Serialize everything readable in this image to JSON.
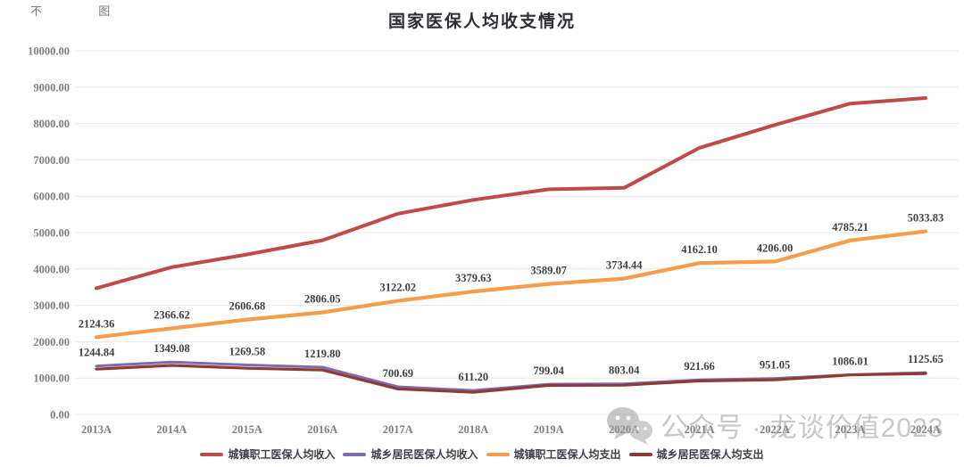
{
  "corner_marks": "不 图",
  "watermark": {
    "icon": "wechat-icon",
    "text": "公众号 · 龙谈价值2023"
  },
  "chart_data": {
    "type": "line",
    "title": "国家医保人均收支情况",
    "categories": [
      "2013A",
      "2014A",
      "2015A",
      "2016A",
      "2017A",
      "2018A",
      "2019A",
      "2020A",
      "2021A",
      "2022A",
      "2023A",
      "2024A"
    ],
    "series": [
      {
        "name": "城镇职工医保人均收入",
        "color": "#BE4B48",
        "labels_shown": false,
        "values_estimated": true,
        "values": [
          3470,
          4050,
          4400,
          4790,
          5520,
          5900,
          6190,
          6230,
          7330,
          7960,
          8550,
          8700
        ]
      },
      {
        "name": "城乡居民医保人均收入",
        "color": "#7D6BAF",
        "labels_shown": false,
        "values_estimated": true,
        "values": [
          1330,
          1440,
          1360,
          1300,
          760,
          660,
          830,
          840,
          950,
          990,
          1090,
          1150
        ]
      },
      {
        "name": "城镇职工医保人均支出",
        "color": "#F59D4D",
        "labels_shown": true,
        "values": [
          2124.36,
          2366.62,
          2606.68,
          2806.05,
          3122.02,
          3379.63,
          3589.07,
          3734.44,
          4162.1,
          4206.0,
          4785.21,
          5033.83
        ]
      },
      {
        "name": "城乡居民医保人均支出",
        "color": "#8E3B36",
        "labels_shown": true,
        "label_clear_series": [
          1,
          3
        ],
        "values": [
          1244.84,
          1349.08,
          1269.58,
          1219.8,
          700.69,
          611.2,
          799.04,
          803.04,
          921.66,
          951.05,
          1086.01,
          1125.65
        ]
      }
    ],
    "ylim": [
      0,
      10000
    ],
    "ytick_step": 1000,
    "ytick_labels": [
      "0.00",
      "1000.00",
      "2000.00",
      "3000.00",
      "4000.00",
      "5000.00",
      "6000.00",
      "7000.00",
      "8000.00",
      "9000.00",
      "10000.00"
    ],
    "xlabel": "",
    "ylabel": "",
    "grid": true,
    "legend_position": "bottom"
  },
  "style": {
    "grid_color": "#e8e8e8",
    "axis_label_color": "#7f7f7f",
    "data_label_color": "#3f3f46",
    "watermark_color": "#9a9a9a"
  }
}
